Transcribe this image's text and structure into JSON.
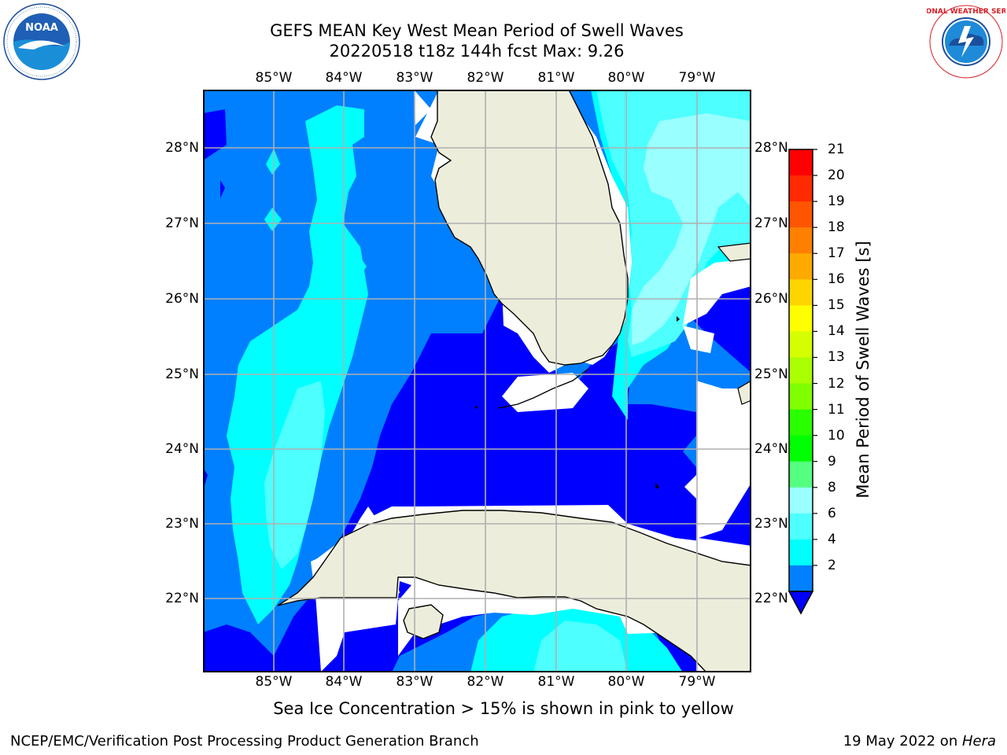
{
  "title": {
    "line1": "GEFS MEAN Key West Mean Period of Swell Waves",
    "line2": "20220518 t18z 144h fcst   Max: 9.26"
  },
  "axes": {
    "lon_labels": [
      "85°W",
      "84°W",
      "83°W",
      "82°W",
      "81°W",
      "80°W",
      "79°W"
    ],
    "lat_labels": [
      "28°N",
      "27°N",
      "26°N",
      "25°N",
      "24°N",
      "23°N",
      "22°N"
    ],
    "lon_extent": [
      -86.0,
      -78.25
    ],
    "lat_extent": [
      21.0,
      28.75
    ],
    "gridlines": true
  },
  "colorbar": {
    "title": "Mean Period of Swell Waves [s]",
    "ticks": [
      "21",
      "20",
      "19",
      "18",
      "17",
      "16",
      "15",
      "14",
      "13",
      "12",
      "11",
      "10",
      "9",
      "8",
      "6",
      "4",
      "2"
    ],
    "extend": "min",
    "colors_top_to_bottom": [
      "#ff0000",
      "#ff2a00",
      "#ff5500",
      "#ff8000",
      "#ffaa00",
      "#ffd500",
      "#ffff00",
      "#d4ff00",
      "#aaff00",
      "#80ff00",
      "#2aff00",
      "#00ff00",
      "#55ff7f",
      "#99ffff",
      "#4dffff",
      "#00ffff",
      "#0080ff"
    ],
    "under_color": "#0000ff"
  },
  "colors": {
    "land": "#ededdc",
    "coastline": "#000000",
    "grid": "#b0b0b0",
    "level_2_4": "#0080ff",
    "level_4_6": "#00ffff",
    "level_6_8": "#4dffff",
    "level_8_9": "#99ffff",
    "level_9_10": "#55ff7f",
    "below_2": "#0000ff"
  },
  "footnote": "Sea Ice Concentration > 15% is shown in pink to yellow",
  "credit_left": "NCEP/EMC/Verification Post Processing Product Generation Branch",
  "credit_right_date": "19 May 2022 on ",
  "credit_right_host": "Hera",
  "logos": {
    "noaa_text": "NOAA",
    "nws_text": "NATIONAL WEATHER SERVICE"
  }
}
